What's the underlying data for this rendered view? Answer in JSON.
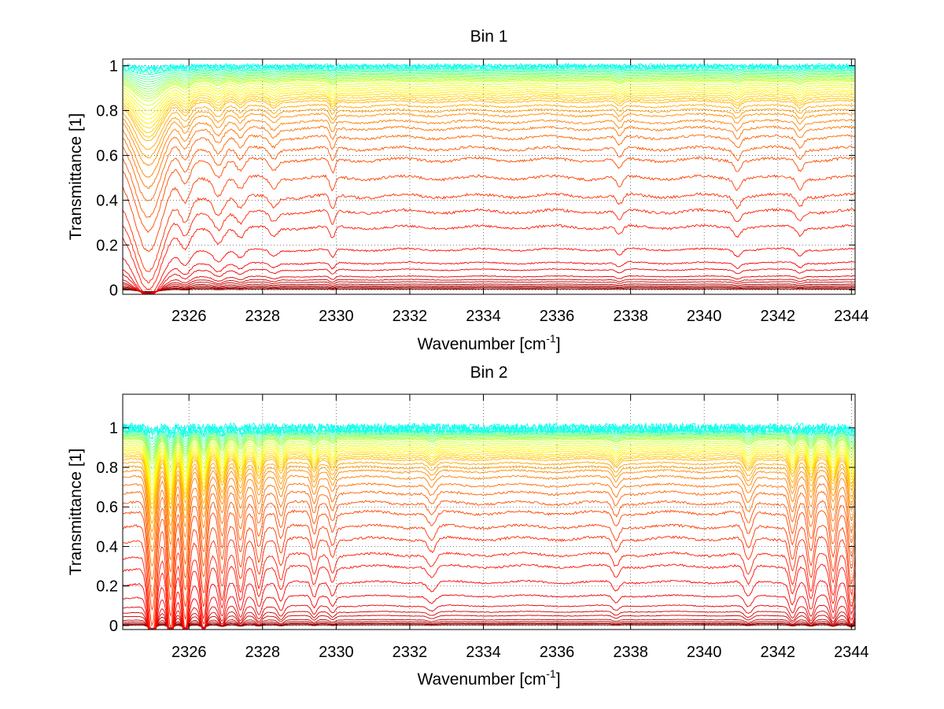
{
  "chart_data": [
    {
      "type": "line",
      "title": "Bin 1",
      "xlabel": "Wavenumber [cm",
      "xlabel_sup": "-1",
      "xlabel_close": "]",
      "ylabel": "Transmittance [1]",
      "xlim": [
        2324.2,
        2344.1
      ],
      "ylim": [
        -0.02,
        1.03
      ],
      "xticks": [
        2326,
        2328,
        2330,
        2332,
        2334,
        2336,
        2338,
        2340,
        2342,
        2344
      ],
      "yticks": [
        0,
        0.2,
        0.4,
        0.6,
        0.8,
        1
      ],
      "ytick_labels": [
        "0",
        "0.2",
        "0.4",
        "0.6",
        "0.8",
        "1"
      ],
      "grid": true,
      "colormap": "jet",
      "series_levels": [
        0.003,
        0.008,
        0.012,
        0.018,
        0.025,
        0.035,
        0.045,
        0.06,
        0.09,
        0.12,
        0.18,
        0.28,
        0.35,
        0.42,
        0.5,
        0.58,
        0.63,
        0.68,
        0.72,
        0.75,
        0.78,
        0.8,
        0.82,
        0.84,
        0.85,
        0.86,
        0.87,
        0.88,
        0.89,
        0.9,
        0.91,
        0.92,
        0.93,
        0.935,
        0.94,
        0.945,
        0.95,
        0.955,
        0.96,
        0.965,
        0.97,
        0.975,
        0.98,
        0.985,
        0.99,
        0.994,
        0.997,
        1.0
      ]
    },
    {
      "type": "line",
      "title": "Bin 2",
      "xlabel": "Wavenumber [cm",
      "xlabel_sup": "-1",
      "xlabel_close": "]",
      "ylabel": "Transmittance [1]",
      "xlim": [
        2324.2,
        2344.1
      ],
      "ylim": [
        -0.02,
        1.17
      ],
      "xticks": [
        2326,
        2328,
        2330,
        2332,
        2334,
        2336,
        2338,
        2340,
        2342,
        2344
      ],
      "yticks": [
        0,
        0.2,
        0.4,
        0.6,
        0.8,
        1
      ],
      "ytick_labels": [
        "0",
        "0.2",
        "0.4",
        "0.6",
        "0.8",
        "1"
      ],
      "grid": true,
      "colormap": "jet",
      "series_levels": [
        0.003,
        0.008,
        0.012,
        0.02,
        0.03,
        0.05,
        0.07,
        0.1,
        0.15,
        0.22,
        0.3,
        0.36,
        0.44,
        0.5,
        0.57,
        0.62,
        0.67,
        0.71,
        0.75,
        0.78,
        0.8,
        0.82,
        0.84,
        0.85,
        0.86,
        0.87,
        0.88,
        0.89,
        0.9,
        0.91,
        0.92,
        0.93,
        0.94,
        0.945,
        0.95,
        0.955,
        0.96,
        0.965,
        0.97,
        0.975,
        0.98,
        0.985,
        0.99,
        0.994,
        0.997,
        1.0
      ]
    }
  ]
}
